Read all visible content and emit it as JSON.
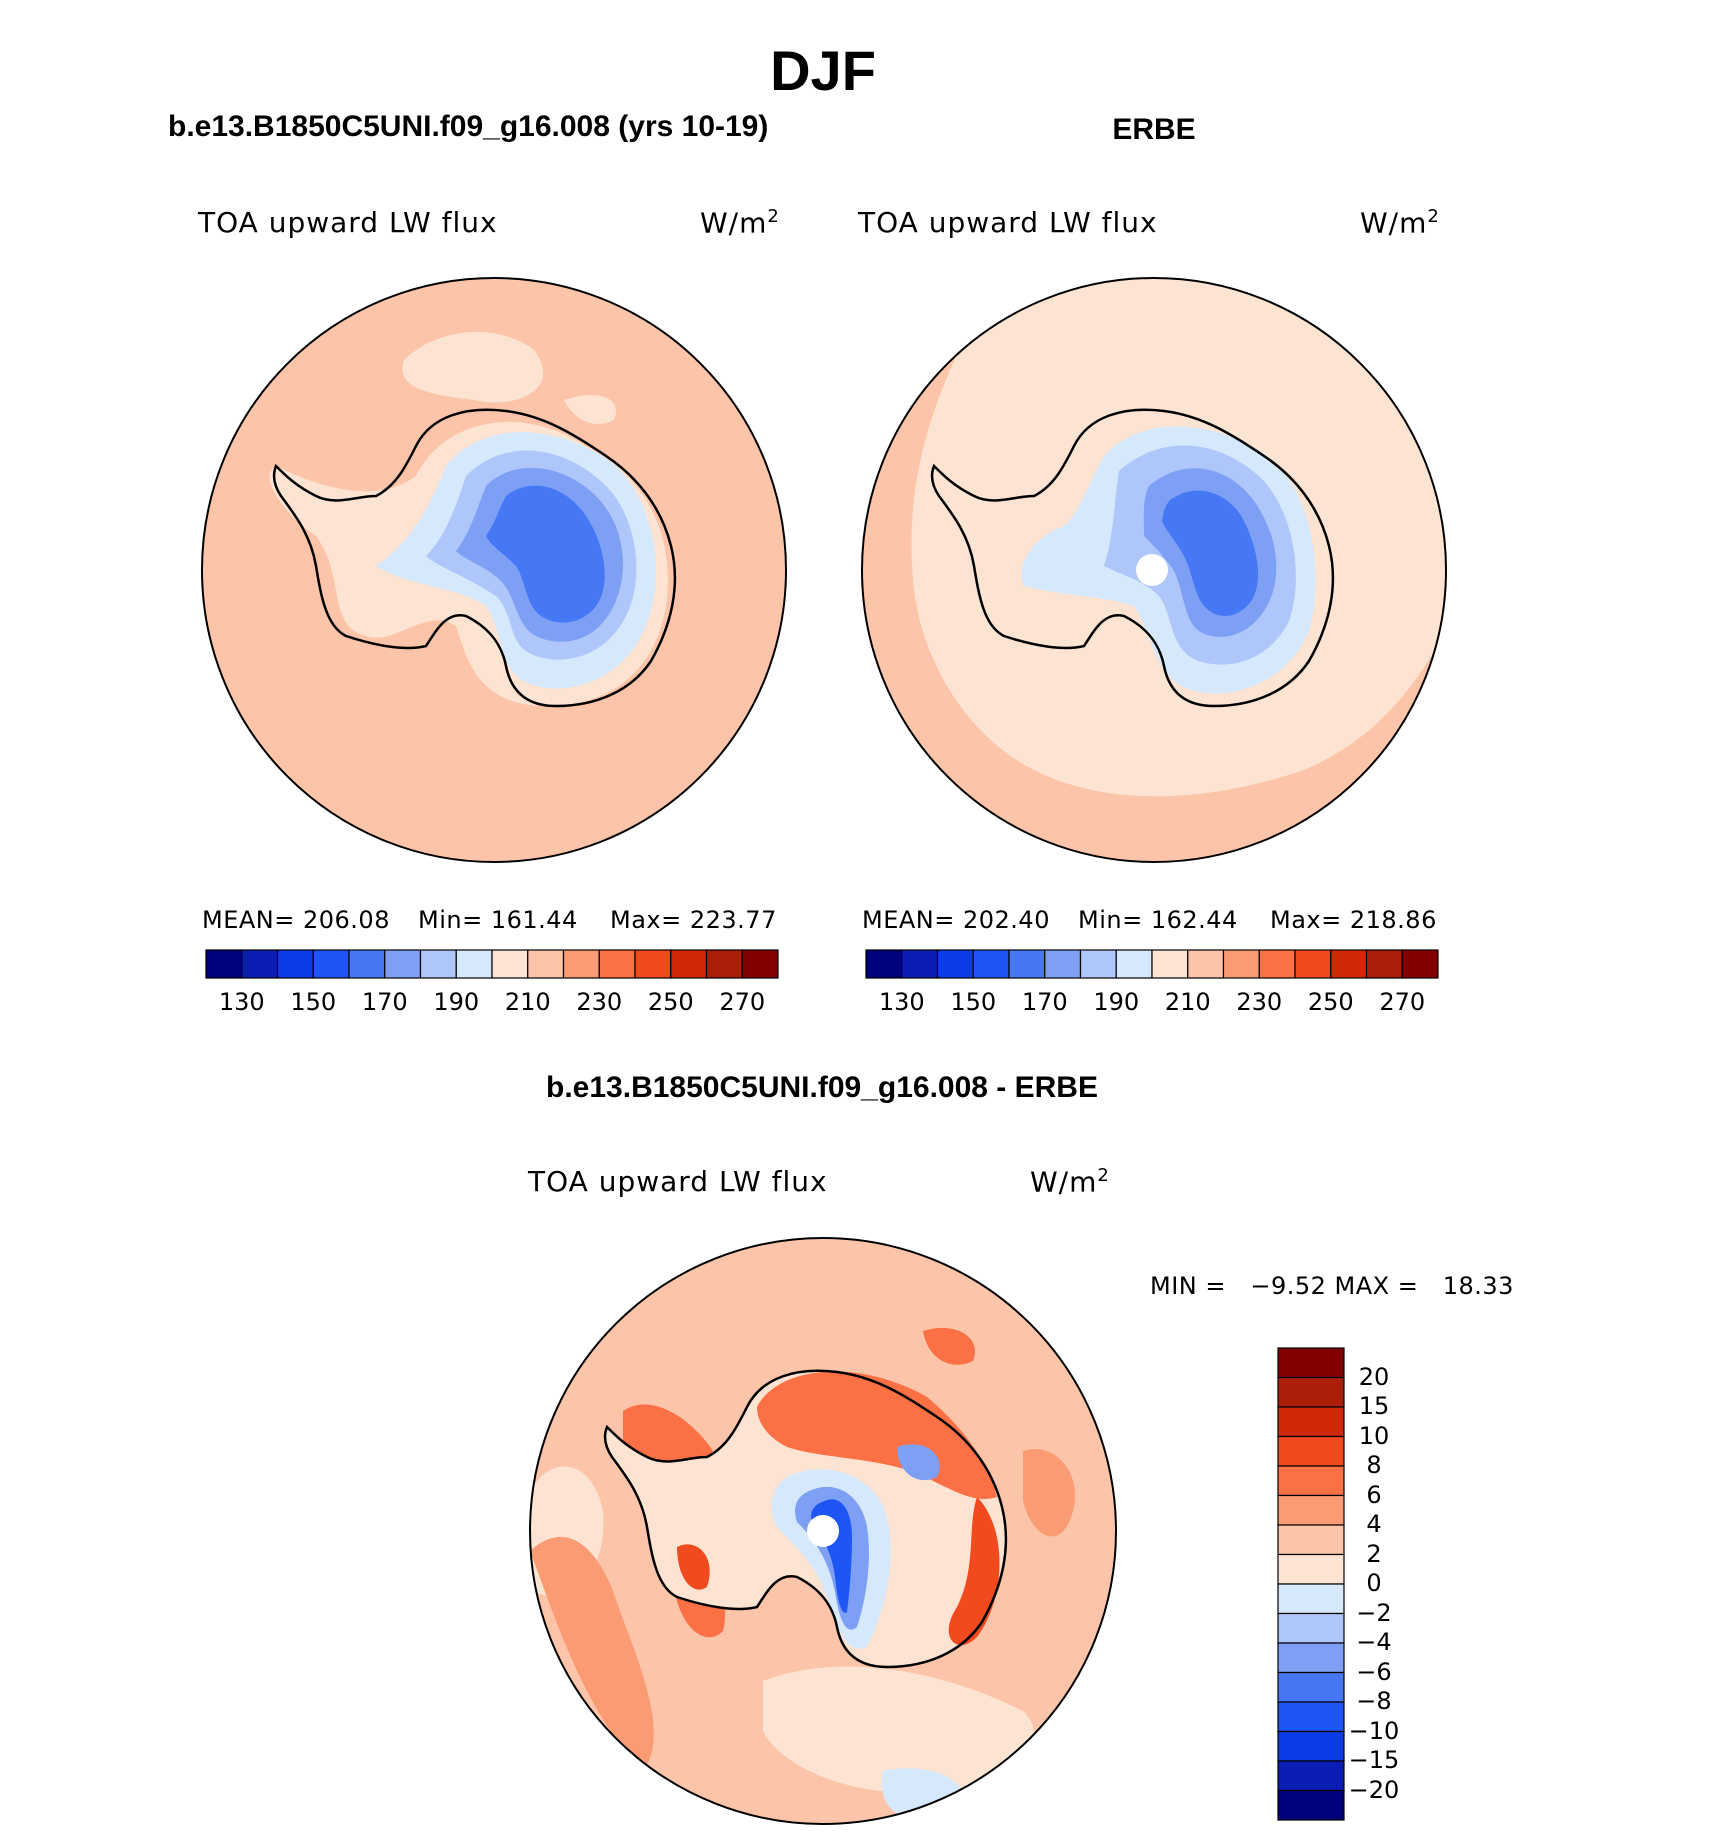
{
  "figure": {
    "season": "DJF"
  },
  "panels": {
    "model": {
      "title": "b.e13.B1850C5UNI.f09_g16.008 (yrs 10-19)",
      "variable": "TOA upward LW flux",
      "units": "W/m",
      "units_exp": "2",
      "mean_text": "MEAN= 206.08",
      "min_text": "Min= 161.44",
      "max_text": "Max= 223.77"
    },
    "obs": {
      "title": "ERBE",
      "variable": "TOA upward LW flux",
      "units": "W/m",
      "units_exp": "2",
      "mean_text": "MEAN= 202.40",
      "min_text": "Min= 162.44",
      "max_text": "Max= 218.86"
    },
    "diff": {
      "title": "b.e13.B1850C5UNI.f09_g16.008 - ERBE",
      "variable": "TOA upward LW flux",
      "units": "W/m",
      "units_exp": "2",
      "minmax_text": "MIN =   −9.52 MAX =   18.33"
    }
  },
  "colorbars": {
    "abs": {
      "colors": [
        "#00007a",
        "#0a1eb4",
        "#0a3ce6",
        "#1e55f5",
        "#4678f5",
        "#7da0f5",
        "#aec6fa",
        "#d6e8fb",
        "#fde4d2",
        "#fcc4a8",
        "#fb9b74",
        "#fb7044",
        "#f04a1e",
        "#d2280a",
        "#aa1e0a",
        "#820000"
      ],
      "tick_labels": [
        "130",
        "150",
        "170",
        "190",
        "210",
        "230",
        "250",
        "270"
      ]
    },
    "diff": {
      "colors": [
        "#820000",
        "#aa1e0a",
        "#d2280a",
        "#f04a1e",
        "#fb7044",
        "#fb9b74",
        "#fcc4a8",
        "#fde4d2",
        "#d6e8fb",
        "#aec6fa",
        "#7da0f5",
        "#4678f5",
        "#1e55f5",
        "#0a3ce6",
        "#0a1eb4",
        "#00007a"
      ],
      "tick_labels": [
        "20",
        "15",
        "10",
        "8",
        "6",
        "4",
        "2",
        "0",
        "−2",
        "−4",
        "−6",
        "−8",
        "−10",
        "−15",
        "−20"
      ]
    }
  },
  "map_colors": {
    "ocean_model": "#fcc4a8",
    "ocean_obs": "#fde4d2",
    "ocean_diff": "#fcc4a8",
    "coast": "#000000",
    "missing": "#ffffff"
  }
}
